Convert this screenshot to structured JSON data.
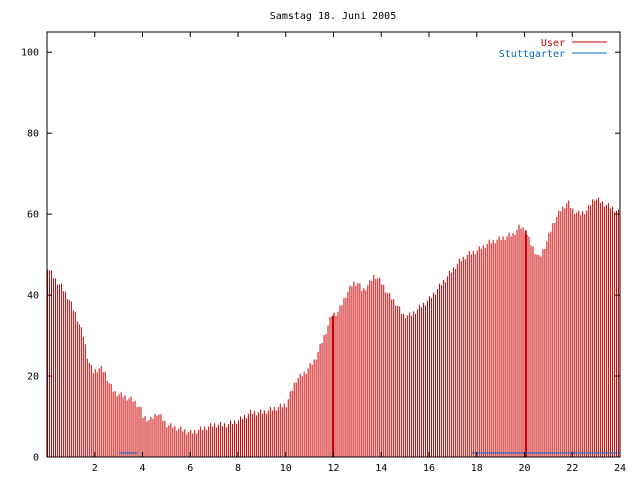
{
  "chart_data": {
    "type": "bar",
    "title": "Samstag 18. Juni 2005",
    "xlabel": "",
    "ylabel": "",
    "xlim": [
      0,
      24
    ],
    "ylim": [
      0,
      105
    ],
    "xticks": [
      2,
      4,
      6,
      8,
      10,
      12,
      14,
      16,
      18,
      20,
      22,
      24
    ],
    "yticks": [
      0,
      20,
      40,
      60,
      80,
      100
    ],
    "grid": false,
    "legend_position": "top-right",
    "series": [
      {
        "name": "User",
        "color": "#cc0000",
        "profile": [
          [
            0.0,
            47
          ],
          [
            0.3,
            44
          ],
          [
            0.6,
            42
          ],
          [
            0.9,
            39
          ],
          [
            1.2,
            35
          ],
          [
            1.5,
            30
          ],
          [
            1.7,
            24
          ],
          [
            1.9,
            21
          ],
          [
            2.2,
            22
          ],
          [
            2.4,
            21
          ],
          [
            2.6,
            18
          ],
          [
            2.8,
            16
          ],
          [
            3.2,
            15
          ],
          [
            3.6,
            14
          ],
          [
            3.9,
            12
          ],
          [
            4.0,
            10
          ],
          [
            4.3,
            9
          ],
          [
            4.6,
            11
          ],
          [
            5.0,
            8
          ],
          [
            5.5,
            7
          ],
          [
            6.0,
            6
          ],
          [
            6.5,
            7
          ],
          [
            7.0,
            8
          ],
          [
            7.5,
            8
          ],
          [
            8.0,
            9
          ],
          [
            8.5,
            11
          ],
          [
            9.0,
            11
          ],
          [
            9.5,
            12
          ],
          [
            10.0,
            13
          ],
          [
            10.4,
            19
          ],
          [
            10.8,
            21
          ],
          [
            11.2,
            24
          ],
          [
            11.6,
            30
          ],
          [
            11.9,
            35
          ],
          [
            12.2,
            36
          ],
          [
            12.5,
            40
          ],
          [
            12.8,
            43
          ],
          [
            13.0,
            43
          ],
          [
            13.2,
            41
          ],
          [
            13.5,
            43
          ],
          [
            13.7,
            45
          ],
          [
            14.0,
            43
          ],
          [
            14.3,
            40
          ],
          [
            14.6,
            38
          ],
          [
            14.9,
            35
          ],
          [
            15.2,
            35
          ],
          [
            15.6,
            37
          ],
          [
            16.0,
            39
          ],
          [
            16.4,
            42
          ],
          [
            16.8,
            45
          ],
          [
            17.2,
            48
          ],
          [
            17.6,
            50
          ],
          [
            18.0,
            51
          ],
          [
            18.5,
            53
          ],
          [
            19.0,
            54
          ],
          [
            19.5,
            55
          ],
          [
            19.8,
            57
          ],
          [
            20.0,
            56
          ],
          [
            20.3,
            52
          ],
          [
            20.6,
            49
          ],
          [
            20.9,
            53
          ],
          [
            21.2,
            58
          ],
          [
            21.5,
            61
          ],
          [
            21.8,
            63
          ],
          [
            22.0,
            61
          ],
          [
            22.3,
            60
          ],
          [
            22.6,
            61
          ],
          [
            22.9,
            64
          ],
          [
            23.2,
            63
          ],
          [
            23.5,
            62
          ],
          [
            23.8,
            61
          ],
          [
            24.0,
            60
          ]
        ],
        "spikes": [
          [
            12.0,
            35
          ],
          [
            20.05,
            56
          ]
        ]
      },
      {
        "name": "Stuttgarter",
        "color": "#0066cc",
        "segments": [
          [
            3.0,
            3.8,
            1
          ],
          [
            17.8,
            24.0,
            1
          ]
        ]
      }
    ]
  }
}
